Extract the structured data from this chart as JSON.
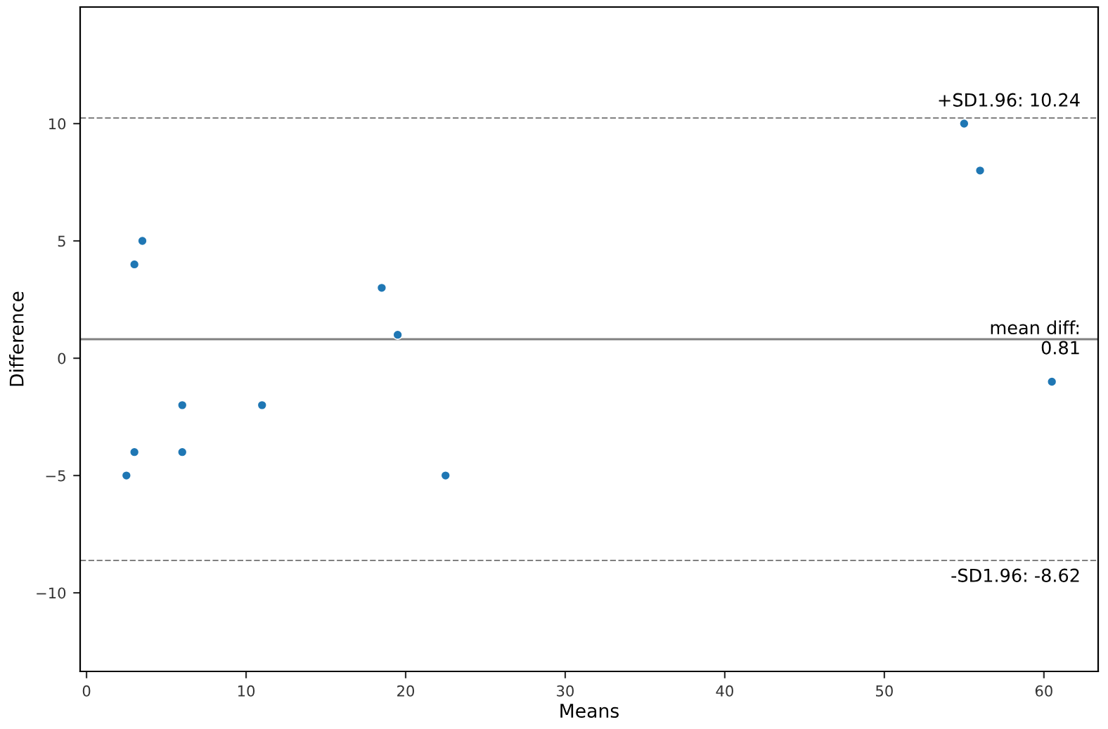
{
  "chart_data": {
    "type": "scatter",
    "xlabel": "Means",
    "ylabel": "Difference",
    "x": [
      2.5,
      3,
      3,
      3.5,
      6,
      6,
      11,
      18.5,
      19.5,
      22.5,
      55,
      56,
      60.5
    ],
    "series": [
      {
        "color": "#1f77b4",
        "values": [
          -5,
          -4,
          4,
          5,
          -2,
          -4,
          -2,
          3,
          1,
          -5,
          10,
          8,
          -1
        ]
      }
    ],
    "marker": "circle",
    "xlim": [
      -0.4,
      63.4
    ],
    "xticks": [
      0,
      10,
      20,
      30,
      40,
      50,
      60
    ],
    "ylim": [
      -13.35,
      14.97
    ],
    "yticks": [
      {
        "value": -10,
        "label": "−10"
      },
      {
        "value": -5,
        "label": "−5"
      },
      0,
      5,
      10
    ],
    "ref_lines": [
      {
        "axis": "y",
        "value": 10.24,
        "label": "+SD1.96: 10.24",
        "color": "#808080",
        "line_style": "dashed"
      },
      {
        "axis": "y",
        "value": 0.81,
        "label": "mean diff:\n0.81",
        "color": "#808080",
        "line_style": "solid"
      },
      {
        "axis": "y",
        "value": -8.62,
        "label": "-SD1.96: -8.62",
        "color": "#808080",
        "line_style": "dashed"
      }
    ]
  }
}
